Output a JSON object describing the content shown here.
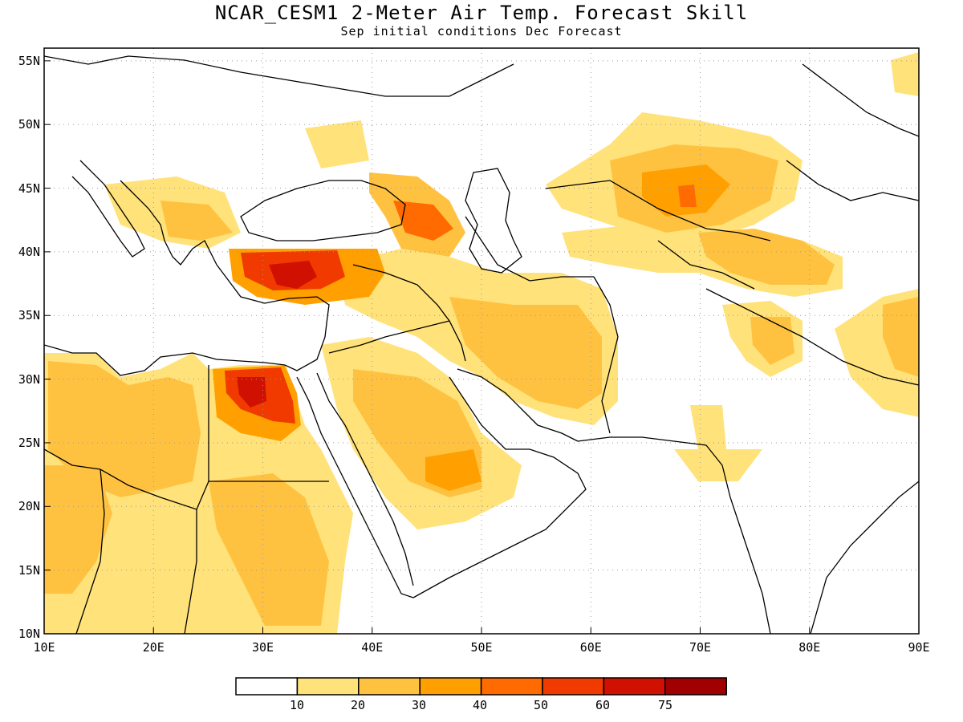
{
  "title": "NCAR_CESM1 2-Meter Air Temp. Forecast Skill",
  "subtitle": "Sep initial conditions  Dec Forecast",
  "map": {
    "projection": "cylindrical-equidistant",
    "lon_range": [
      10,
      90
    ],
    "lat_range": [
      10,
      56
    ],
    "lon_ticks": [
      "10E",
      "20E",
      "30E",
      "40E",
      "50E",
      "60E",
      "70E",
      "80E",
      "90E"
    ],
    "lat_ticks": [
      "10N",
      "15N",
      "20N",
      "25N",
      "30N",
      "35N",
      "40N",
      "45N",
      "50N",
      "55N"
    ],
    "grid": "dotted"
  },
  "legend": {
    "labels": [
      "10",
      "20",
      "30",
      "40",
      "50",
      "60",
      "75"
    ],
    "colors": [
      "#ffffff",
      "#ffe27a",
      "#ffc240",
      "#ffa000",
      "#ff6b00",
      "#f03a00",
      "#d01000",
      "#a00000"
    ]
  }
}
